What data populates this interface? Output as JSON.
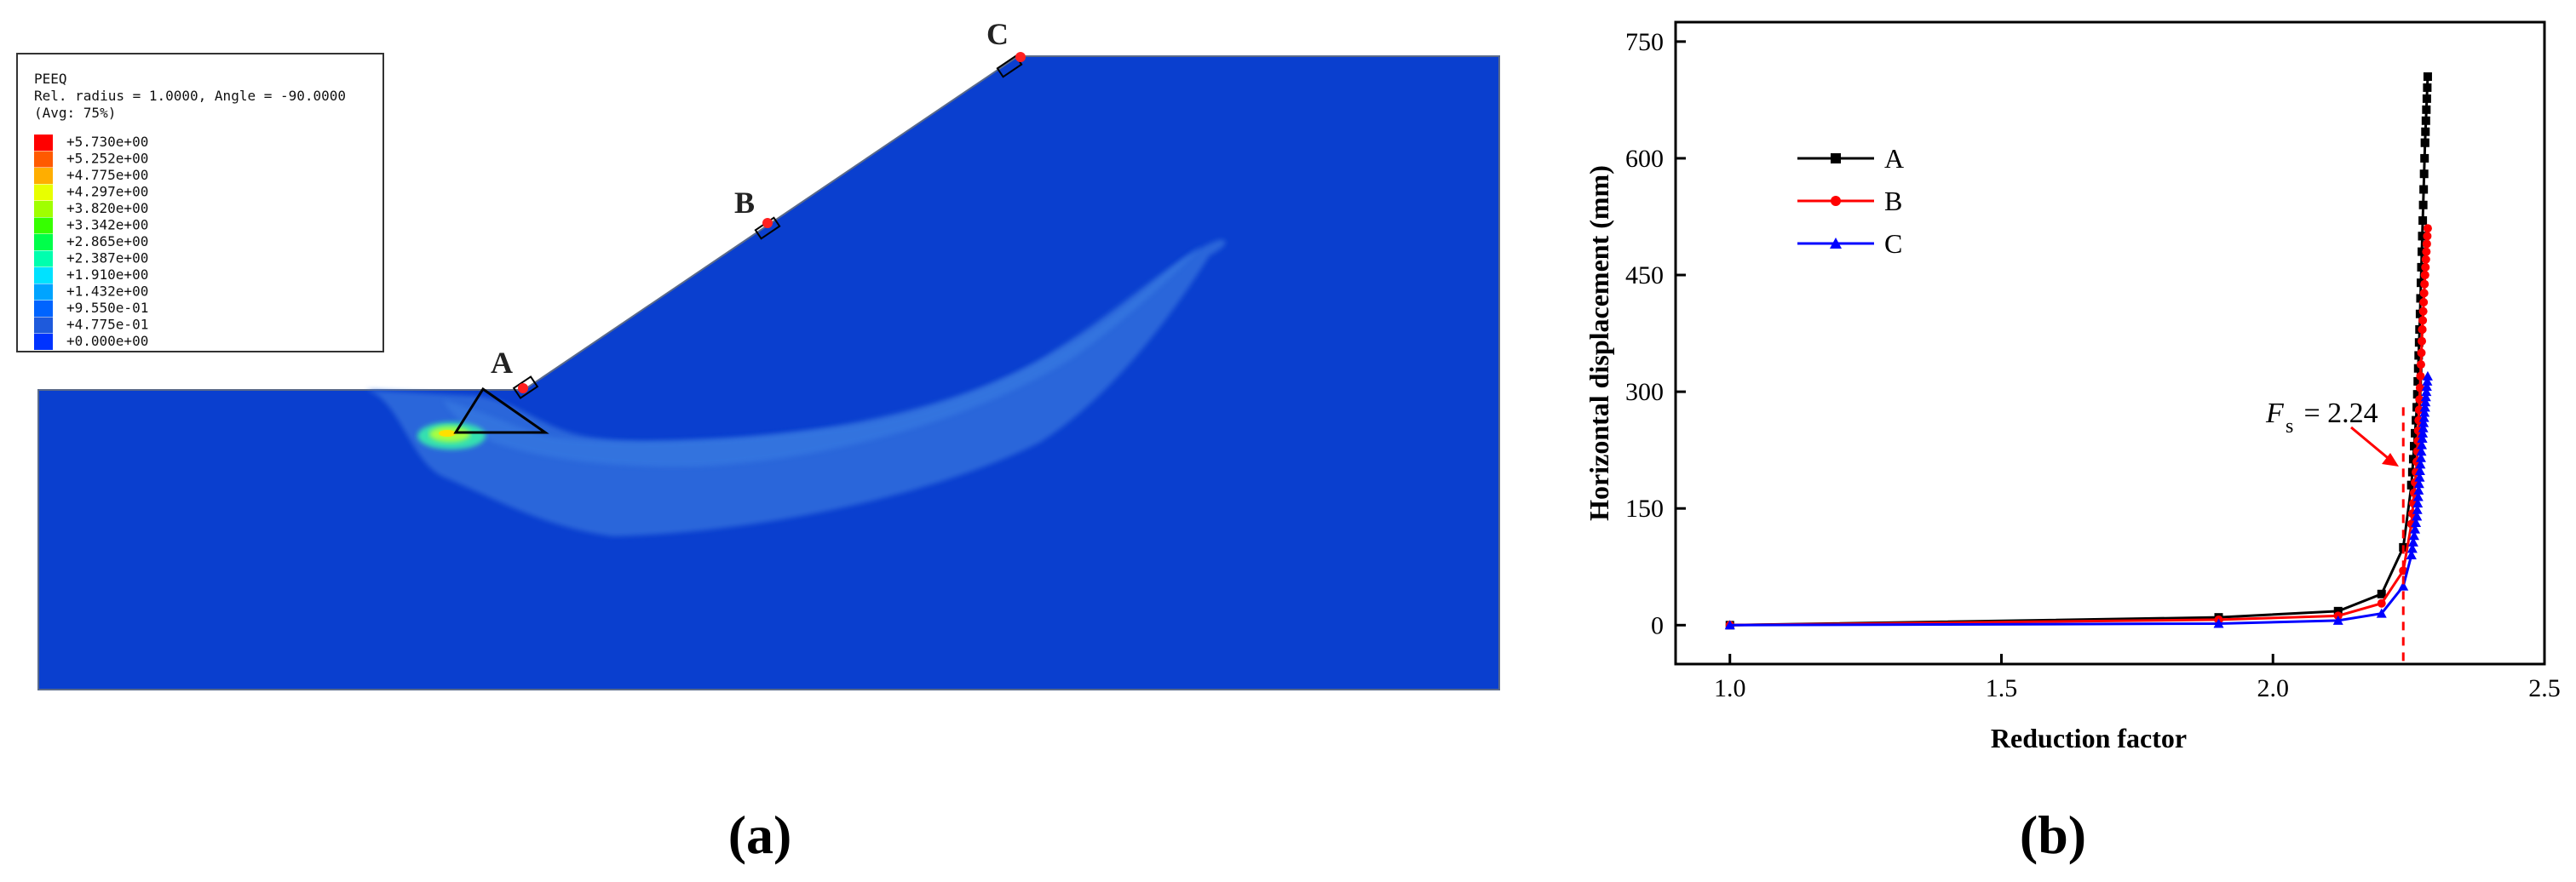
{
  "panel_a": {
    "caption": "(a)",
    "legend": {
      "title": "PEEQ",
      "line1": "Rel. radius = 1.0000, Angle = -90.0000",
      "line2": "(Avg: 75%)",
      "values": [
        "+5.730e+00",
        "+5.252e+00",
        "+4.775e+00",
        "+4.297e+00",
        "+3.820e+00",
        "+3.342e+00",
        "+2.865e+00",
        "+2.387e+00",
        "+1.910e+00",
        "+1.432e+00",
        "+9.550e-01",
        "+4.775e-01",
        "+0.000e+00"
      ],
      "colors": [
        "#ff0000",
        "#ff5a00",
        "#ffae00",
        "#e8ff00",
        "#a0ff00",
        "#36ff00",
        "#00ff4a",
        "#00ffae",
        "#00e2ff",
        "#00a4ff",
        "#0064ff",
        "#1e5adc",
        "#0033ff"
      ]
    },
    "points": [
      "A",
      "B",
      "C"
    ],
    "colors": {
      "background_field": "#0a3fcf",
      "band": "#2a66da",
      "band_inner": "#3a7fe3",
      "marker": "#ff2020"
    }
  },
  "panel_b": {
    "caption": "(b)",
    "annotation": {
      "symbol": "F",
      "subscript": "s",
      "text": " = 2.24",
      "value": 2.24
    },
    "chart_data": {
      "type": "line",
      "xlabel": "Reduction factor",
      "ylabel": "Horizontal displacement (mm)",
      "xlim": [
        0.9,
        2.5
      ],
      "ylim": [
        -50,
        775
      ],
      "xticks": [
        1.0,
        1.5,
        2.0,
        2.5
      ],
      "xtick_labels": [
        "1.0",
        "1.5",
        "2.0",
        "2.5"
      ],
      "yticks": [
        0,
        150,
        300,
        450,
        600,
        750
      ],
      "ytick_labels": [
        "0",
        "150",
        "300",
        "450",
        "600",
        "750"
      ],
      "legend_position": "upper-left",
      "grid": false,
      "series": [
        {
          "name": "A",
          "color": "#000000",
          "marker": "square",
          "x": [
            1.0,
            1.9,
            2.12,
            2.2,
            2.24,
            2.255,
            2.265,
            2.27,
            2.275,
            2.28,
            2.285
          ],
          "y": [
            0,
            10,
            18,
            40,
            100,
            180,
            280,
            380,
            500,
            620,
            705
          ]
        },
        {
          "name": "B",
          "color": "#ff0000",
          "marker": "circle",
          "x": [
            1.0,
            1.9,
            2.12,
            2.2,
            2.24,
            2.255,
            2.265,
            2.27,
            2.275,
            2.28,
            2.285
          ],
          "y": [
            0,
            7,
            12,
            28,
            70,
            130,
            210,
            290,
            380,
            450,
            510
          ]
        },
        {
          "name": "C",
          "color": "#0000ff",
          "marker": "triangle",
          "x": [
            1.0,
            1.9,
            2.12,
            2.2,
            2.24,
            2.255,
            2.265,
            2.27,
            2.275,
            2.28,
            2.285
          ],
          "y": [
            0,
            2,
            6,
            15,
            50,
            90,
            140,
            190,
            240,
            280,
            320
          ]
        }
      ]
    }
  }
}
